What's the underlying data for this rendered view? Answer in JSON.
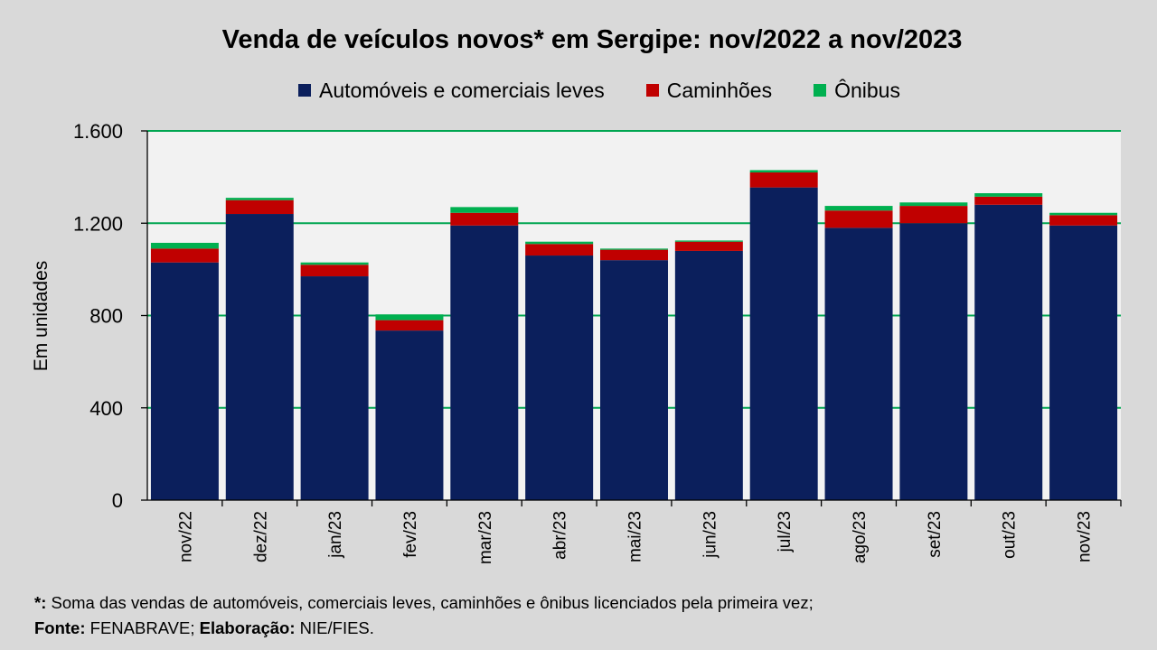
{
  "chart_data": {
    "type": "bar",
    "stacked": true,
    "title": "Venda de veículos novos* em Sergipe: nov/2022 a nov/2023",
    "xlabel": "",
    "ylabel": "Em unidades",
    "ylim": [
      0,
      1600
    ],
    "yticks": [
      0,
      400,
      800,
      1200,
      1600
    ],
    "ytick_labels": [
      "0",
      "400",
      "800",
      "1.200",
      "1.600"
    ],
    "grid": true,
    "legend_position": "top",
    "categories": [
      "nov/22",
      "dez/22",
      "jan/23",
      "fev/23",
      "mar/23",
      "abr/23",
      "mai/23",
      "jun/23",
      "jul/23",
      "ago/23",
      "set/23",
      "out/23",
      "nov/23"
    ],
    "series": [
      {
        "name": "Automóveis e comerciais leves",
        "color": "#0b1f5c",
        "values": [
          1030,
          1240,
          970,
          735,
          1190,
          1060,
          1040,
          1080,
          1355,
          1180,
          1200,
          1280,
          1190
        ]
      },
      {
        "name": "Caminhões",
        "color": "#c00000",
        "values": [
          60,
          60,
          50,
          45,
          55,
          50,
          45,
          40,
          65,
          75,
          75,
          35,
          45
        ]
      },
      {
        "name": "Ônibus",
        "color": "#00b050",
        "values": [
          25,
          10,
          10,
          25,
          25,
          10,
          5,
          5,
          10,
          20,
          15,
          15,
          10
        ]
      }
    ]
  },
  "colors": {
    "plot_background": "#f2f2f2",
    "gridline": "#00a651",
    "page_background": "#d9d9d9"
  },
  "footnote": {
    "star": "*:",
    "star_text": " Soma das vendas de automóveis, comerciais leves, caminhões e ônibus licenciados  pela primeira vez;",
    "source_label": "Fonte:",
    "source_text": " FENABRAVE; ",
    "elab_label": "Elaboração:",
    "elab_text": " NIE/FIES."
  }
}
